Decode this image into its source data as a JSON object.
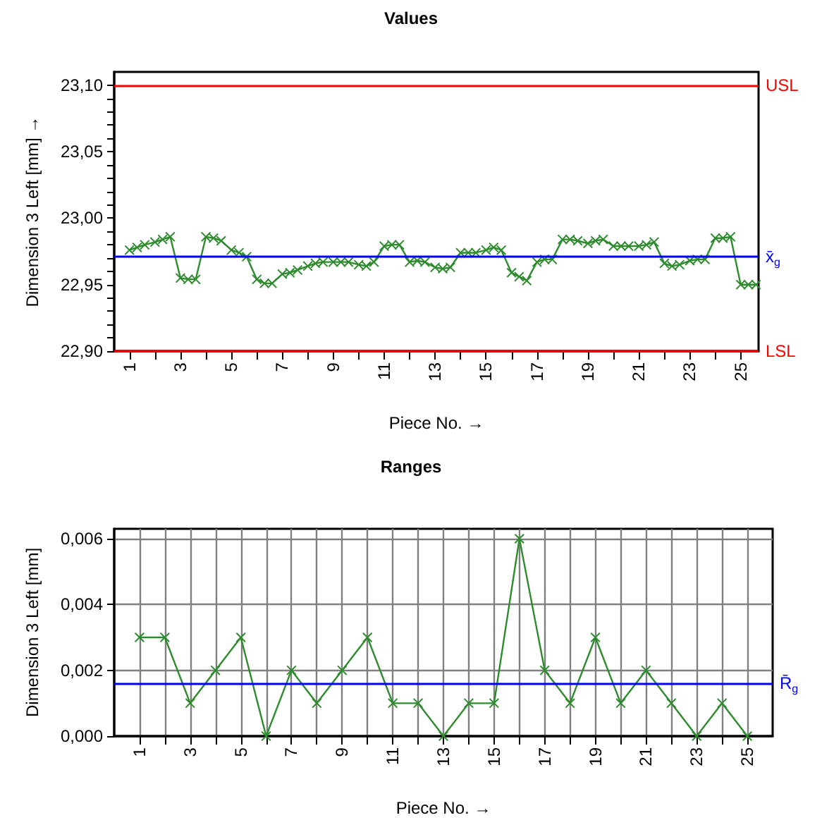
{
  "chart_data": [
    {
      "type": "line",
      "title": "Values",
      "xlabel": "Piece No. →",
      "ylabel": "Dimension 3 Left [mm] →",
      "marker": "cross",
      "line_style": "solid",
      "grid": false,
      "xlim": [
        0.4,
        25.7
      ],
      "xticks": [
        {
          "value": 1,
          "label": "1"
        },
        {
          "value": 2,
          "label": null
        },
        {
          "value": 3,
          "label": "3"
        },
        {
          "value": 4,
          "label": null
        },
        {
          "value": 5,
          "label": "5"
        },
        {
          "value": 6,
          "label": null
        },
        {
          "value": 7,
          "label": "7"
        },
        {
          "value": 8,
          "label": null
        },
        {
          "value": 9,
          "label": "9"
        },
        {
          "value": 10,
          "label": null
        },
        {
          "value": 11,
          "label": "11"
        },
        {
          "value": 12,
          "label": null
        },
        {
          "value": 13,
          "label": "13"
        },
        {
          "value": 14,
          "label": null
        },
        {
          "value": 15,
          "label": "15"
        },
        {
          "value": 16,
          "label": null
        },
        {
          "value": 17,
          "label": "17"
        },
        {
          "value": 18,
          "label": null
        },
        {
          "value": 19,
          "label": "19"
        },
        {
          "value": 20,
          "label": null
        },
        {
          "value": 21,
          "label": "21"
        },
        {
          "value": 22,
          "label": null
        },
        {
          "value": 23,
          "label": "23"
        },
        {
          "value": 24,
          "label": null
        },
        {
          "value": 25,
          "label": "25"
        }
      ],
      "ylim": [
        22.9,
        23.11
      ],
      "yticks": [
        {
          "value": 22.9,
          "label": "22,90"
        },
        {
          "value": 22.91,
          "label": null
        },
        {
          "value": 22.92,
          "label": null
        },
        {
          "value": 22.93,
          "label": null
        },
        {
          "value": 22.94,
          "label": null
        },
        {
          "value": 22.95,
          "label": "22,95"
        },
        {
          "value": 22.96,
          "label": null
        },
        {
          "value": 22.97,
          "label": null
        },
        {
          "value": 22.98,
          "label": null
        },
        {
          "value": 22.99,
          "label": null
        },
        {
          "value": 23.0,
          "label": "23,00"
        },
        {
          "value": 23.01,
          "label": null
        },
        {
          "value": 23.02,
          "label": null
        },
        {
          "value": 23.03,
          "label": null
        },
        {
          "value": 23.04,
          "label": null
        },
        {
          "value": 23.05,
          "label": "23,05"
        },
        {
          "value": 23.06,
          "label": null
        },
        {
          "value": 23.07,
          "label": null
        },
        {
          "value": 23.08,
          "label": null
        },
        {
          "value": 23.09,
          "label": null
        },
        {
          "value": 23.1,
          "label": "23,10"
        }
      ],
      "x": [
        1,
        1.3,
        1.6,
        2,
        2.3,
        2.6,
        3,
        3.3,
        3.6,
        4,
        4.3,
        4.6,
        5,
        5.3,
        5.6,
        6,
        6.3,
        6.6,
        7,
        7.3,
        7.6,
        8,
        8.3,
        8.6,
        9,
        9.3,
        9.6,
        10,
        10.3,
        10.6,
        11,
        11.3,
        11.6,
        12,
        12.3,
        12.6,
        13,
        13.3,
        13.6,
        14,
        14.3,
        14.6,
        15,
        15.3,
        15.6,
        16,
        16.3,
        16.6,
        17,
        17.3,
        17.6,
        18,
        18.3,
        18.6,
        19,
        19.3,
        19.6,
        20,
        20.3,
        20.6,
        21,
        21.3,
        21.6,
        22,
        22.3,
        22.6,
        23,
        23.3,
        23.6,
        24,
        24.3,
        24.6,
        25,
        25.3,
        25.6
      ],
      "series": [
        {
          "color": "#2e8b2e",
          "values": [
            22.976,
            22.978,
            22.98,
            22.982,
            22.984,
            22.986,
            22.955,
            22.954,
            22.954,
            22.986,
            22.985,
            22.983,
            22.976,
            22.974,
            22.971,
            22.954,
            22.951,
            22.951,
            22.958,
            22.959,
            22.961,
            22.964,
            22.966,
            22.967,
            22.967,
            22.967,
            22.967,
            22.965,
            22.964,
            22.967,
            22.979,
            22.98,
            22.98,
            22.967,
            22.968,
            22.967,
            22.963,
            22.962,
            22.963,
            22.974,
            22.974,
            22.974,
            22.976,
            22.978,
            22.976,
            22.959,
            22.956,
            22.953,
            22.967,
            22.969,
            22.969,
            22.984,
            22.984,
            22.983,
            22.981,
            22.983,
            22.984,
            22.979,
            22.979,
            22.979,
            22.979,
            22.98,
            22.982,
            22.966,
            22.964,
            22.965,
            22.968,
            22.969,
            22.969,
            22.985,
            22.985,
            22.986,
            22.95,
            22.95,
            22.95
          ]
        }
      ],
      "ref_lines": [
        {
          "axis": "y",
          "value": 23.1,
          "label": "USL",
          "color": "#ff0000"
        },
        {
          "axis": "y",
          "value": 22.9,
          "label": "LSL",
          "color": "#ff0000"
        },
        {
          "axis": "y",
          "value": 22.971,
          "label": "x̄$_{g}$",
          "color": "#0000ff"
        }
      ]
    },
    {
      "type": "line",
      "title": "Ranges",
      "xlabel": "Piece No. →",
      "ylabel": "Dimension 3 Left [mm]",
      "marker": "cross",
      "line_style": "solid",
      "grid": true,
      "xlim": [
        0,
        26
      ],
      "xticks": [
        {
          "value": 1,
          "label": "1"
        },
        {
          "value": 2,
          "label": null
        },
        {
          "value": 3,
          "label": "3"
        },
        {
          "value": 4,
          "label": null
        },
        {
          "value": 5,
          "label": "5"
        },
        {
          "value": 6,
          "label": null
        },
        {
          "value": 7,
          "label": "7"
        },
        {
          "value": 8,
          "label": null
        },
        {
          "value": 9,
          "label": "9"
        },
        {
          "value": 10,
          "label": null
        },
        {
          "value": 11,
          "label": "11"
        },
        {
          "value": 12,
          "label": null
        },
        {
          "value": 13,
          "label": "13"
        },
        {
          "value": 14,
          "label": null
        },
        {
          "value": 15,
          "label": "15"
        },
        {
          "value": 16,
          "label": null
        },
        {
          "value": 17,
          "label": "17"
        },
        {
          "value": 18,
          "label": null
        },
        {
          "value": 19,
          "label": "19"
        },
        {
          "value": 20,
          "label": null
        },
        {
          "value": 21,
          "label": "21"
        },
        {
          "value": 22,
          "label": null
        },
        {
          "value": 23,
          "label": "23"
        },
        {
          "value": 24,
          "label": null
        },
        {
          "value": 25,
          "label": "25"
        }
      ],
      "ylim": [
        0,
        0.0063
      ],
      "yticks": [
        {
          "value": 0,
          "label": "0,000"
        },
        {
          "value": 0.002,
          "label": "0,002"
        },
        {
          "value": 0.004,
          "label": "0,004"
        },
        {
          "value": 0.006,
          "label": "0,006"
        }
      ],
      "x": [
        1,
        2,
        3,
        4,
        5,
        6,
        7,
        8,
        9,
        10,
        11,
        12,
        13,
        14,
        15,
        16,
        17,
        18,
        19,
        20,
        21,
        22,
        23,
        24,
        25
      ],
      "series": [
        {
          "color": "#2e8b2e",
          "values": [
            0.003,
            0.003,
            0.001,
            0.002,
            0.003,
            0,
            0.002,
            0.001,
            0.002,
            0.003,
            0.001,
            0.001,
            0,
            0.001,
            0.001,
            0.006,
            0.002,
            0.001,
            0.003,
            0.001,
            0.002,
            0.001,
            0,
            0.001,
            0
          ]
        }
      ],
      "ref_lines": [
        {
          "axis": "y",
          "value": 0.00161,
          "label": "R̄$_{g}$",
          "color": "#0000ff"
        }
      ]
    }
  ]
}
